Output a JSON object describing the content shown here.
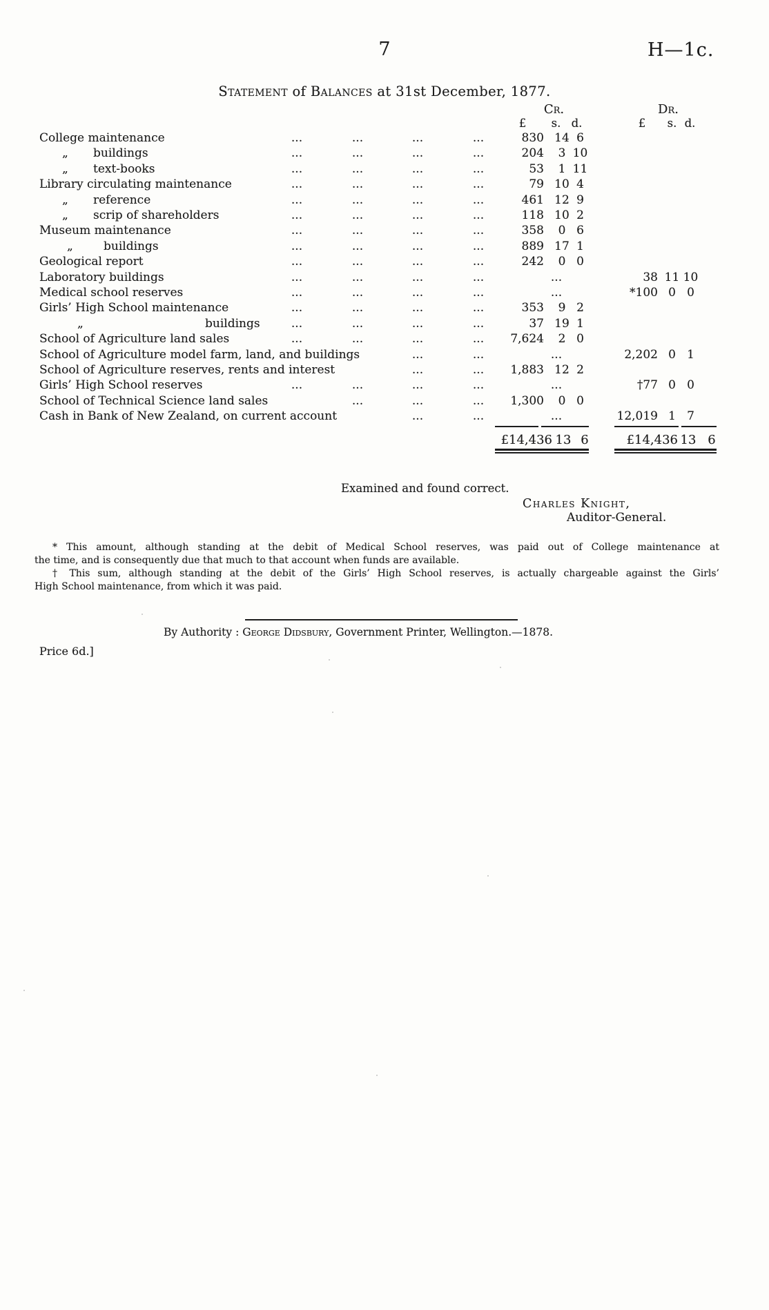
{
  "page": {
    "number": "7",
    "doc_ref": "H—1c."
  },
  "title": {
    "p1": "Statement",
    "p2": "of",
    "p3": "Balances",
    "p4": "at 31st December, 1877."
  },
  "table": {
    "cr_header": "Cr.",
    "dr_header": "Dr.",
    "currency": {
      "pound": "£",
      "shillings": "s.",
      "pence": "d."
    },
    "dots": "...",
    "rows": [
      {
        "label": "College maintenance",
        "indent": "none",
        "dots": [
          1,
          2,
          3,
          4
        ],
        "cr": [
          "830",
          "14",
          "6"
        ]
      },
      {
        "quote": "„",
        "label": "buildings",
        "indent": "sub",
        "dots": [
          1,
          2,
          3,
          4
        ],
        "cr": [
          "204",
          "3",
          "10"
        ]
      },
      {
        "quote": "„",
        "label": "text-books",
        "indent": "sub",
        "dots": [
          1,
          2,
          3,
          4
        ],
        "cr": [
          "53",
          "1",
          "11"
        ]
      },
      {
        "label": "Library circulating maintenance",
        "indent": "none",
        "dots": [
          1,
          2,
          3,
          4
        ],
        "cr": [
          "79",
          "10",
          "4"
        ]
      },
      {
        "quote": "„",
        "label": "reference",
        "indent": "sub",
        "dots": [
          1,
          2,
          3,
          4
        ],
        "cr": [
          "461",
          "12",
          "9"
        ]
      },
      {
        "quote": "„",
        "label": "scrip of shareholders",
        "indent": "sub",
        "dots": [
          1,
          2,
          3,
          4
        ],
        "cr": [
          "118",
          "10",
          "2"
        ]
      },
      {
        "label": "Museum maintenance",
        "indent": "none",
        "dots": [
          1,
          2,
          3,
          4
        ],
        "cr": [
          "358",
          "0",
          "6"
        ]
      },
      {
        "quote": "„",
        "label": "buildings",
        "indent": "sub-museum",
        "dots": [
          1,
          2,
          3,
          4
        ],
        "cr": [
          "889",
          "17",
          "1"
        ]
      },
      {
        "label": "Geological report",
        "indent": "none",
        "dots": [
          1,
          2,
          3,
          4
        ],
        "cr": [
          "242",
          "0",
          "0"
        ]
      },
      {
        "label": "Laboratory buildings",
        "indent": "none",
        "dots": [
          1,
          2,
          3,
          4
        ],
        "cr_dots": true,
        "dr": [
          "38",
          "11",
          "10"
        ]
      },
      {
        "label": "Medical school reserves",
        "indent": "none",
        "dots": [
          1,
          2,
          3,
          4
        ],
        "cr_dots": true,
        "dr": [
          "*100",
          "0",
          "0"
        ]
      },
      {
        "label": "Girls’ High School maintenance",
        "indent": "none",
        "dots": [
          1,
          2,
          3,
          4
        ],
        "cr": [
          "353",
          "9",
          "2"
        ]
      },
      {
        "quote": "„",
        "label": "buildings",
        "indent": "sub-girls",
        "dots": [
          1,
          2,
          3,
          4
        ],
        "cr": [
          "37",
          "19",
          "1"
        ]
      },
      {
        "label": "School of Agriculture land sales",
        "indent": "none",
        "dots": [
          1,
          2,
          3,
          4
        ],
        "cr": [
          "7,624",
          "2",
          "0"
        ]
      },
      {
        "label": "School of Agriculture model farm, land, and buildings",
        "indent": "none",
        "dots": [
          3,
          4
        ],
        "cr_dots": true,
        "dr": [
          "2,202",
          "0",
          "1"
        ]
      },
      {
        "label": "School of Agriculture reserves, rents and interest",
        "indent": "none",
        "dots": [
          3,
          4
        ],
        "cr": [
          "1,883",
          "12",
          "2"
        ]
      },
      {
        "label": "Girls’ High School reserves",
        "indent": "none",
        "dots": [
          1,
          2,
          3,
          4
        ],
        "cr_dots": true,
        "dr": [
          "†77",
          "0",
          "0"
        ]
      },
      {
        "label": "School of Technical Science land sales",
        "indent": "none",
        "dots": [
          2,
          3,
          4
        ],
        "cr": [
          "1,300",
          "0",
          "0"
        ]
      },
      {
        "label": "Cash in Bank of New Zealand, on current account",
        "indent": "none",
        "dots": [
          3,
          4
        ],
        "cr_dots": true,
        "dr": [
          "12,019",
          "1",
          "7"
        ]
      }
    ],
    "totals": {
      "cr": [
        "£14,436",
        "13",
        "6"
      ],
      "dr": [
        "£14,436",
        "13",
        "6"
      ]
    }
  },
  "signature": {
    "line": "Examined and found correct.",
    "name": "Charles Knight,",
    "role": "Auditor-General."
  },
  "footnotes": [
    {
      "lines": [
        "* This amount, although standing at the debit of Medical School reserves, was paid out of College maintenance at",
        "the time, and is consequently due that much to that account when funds are available."
      ]
    },
    {
      "lines": [
        "† This sum, although standing at the debit of the Girls’ High School reserves, is actually chargeable against the Girls’",
        "High School maintenance, from which it was paid."
      ]
    }
  ],
  "imprint": {
    "pre": "By Authority : ",
    "name": "George Didsbury",
    "post": ", Government Printer, Wellington.—1878.",
    "price": "Price 6d.]"
  }
}
